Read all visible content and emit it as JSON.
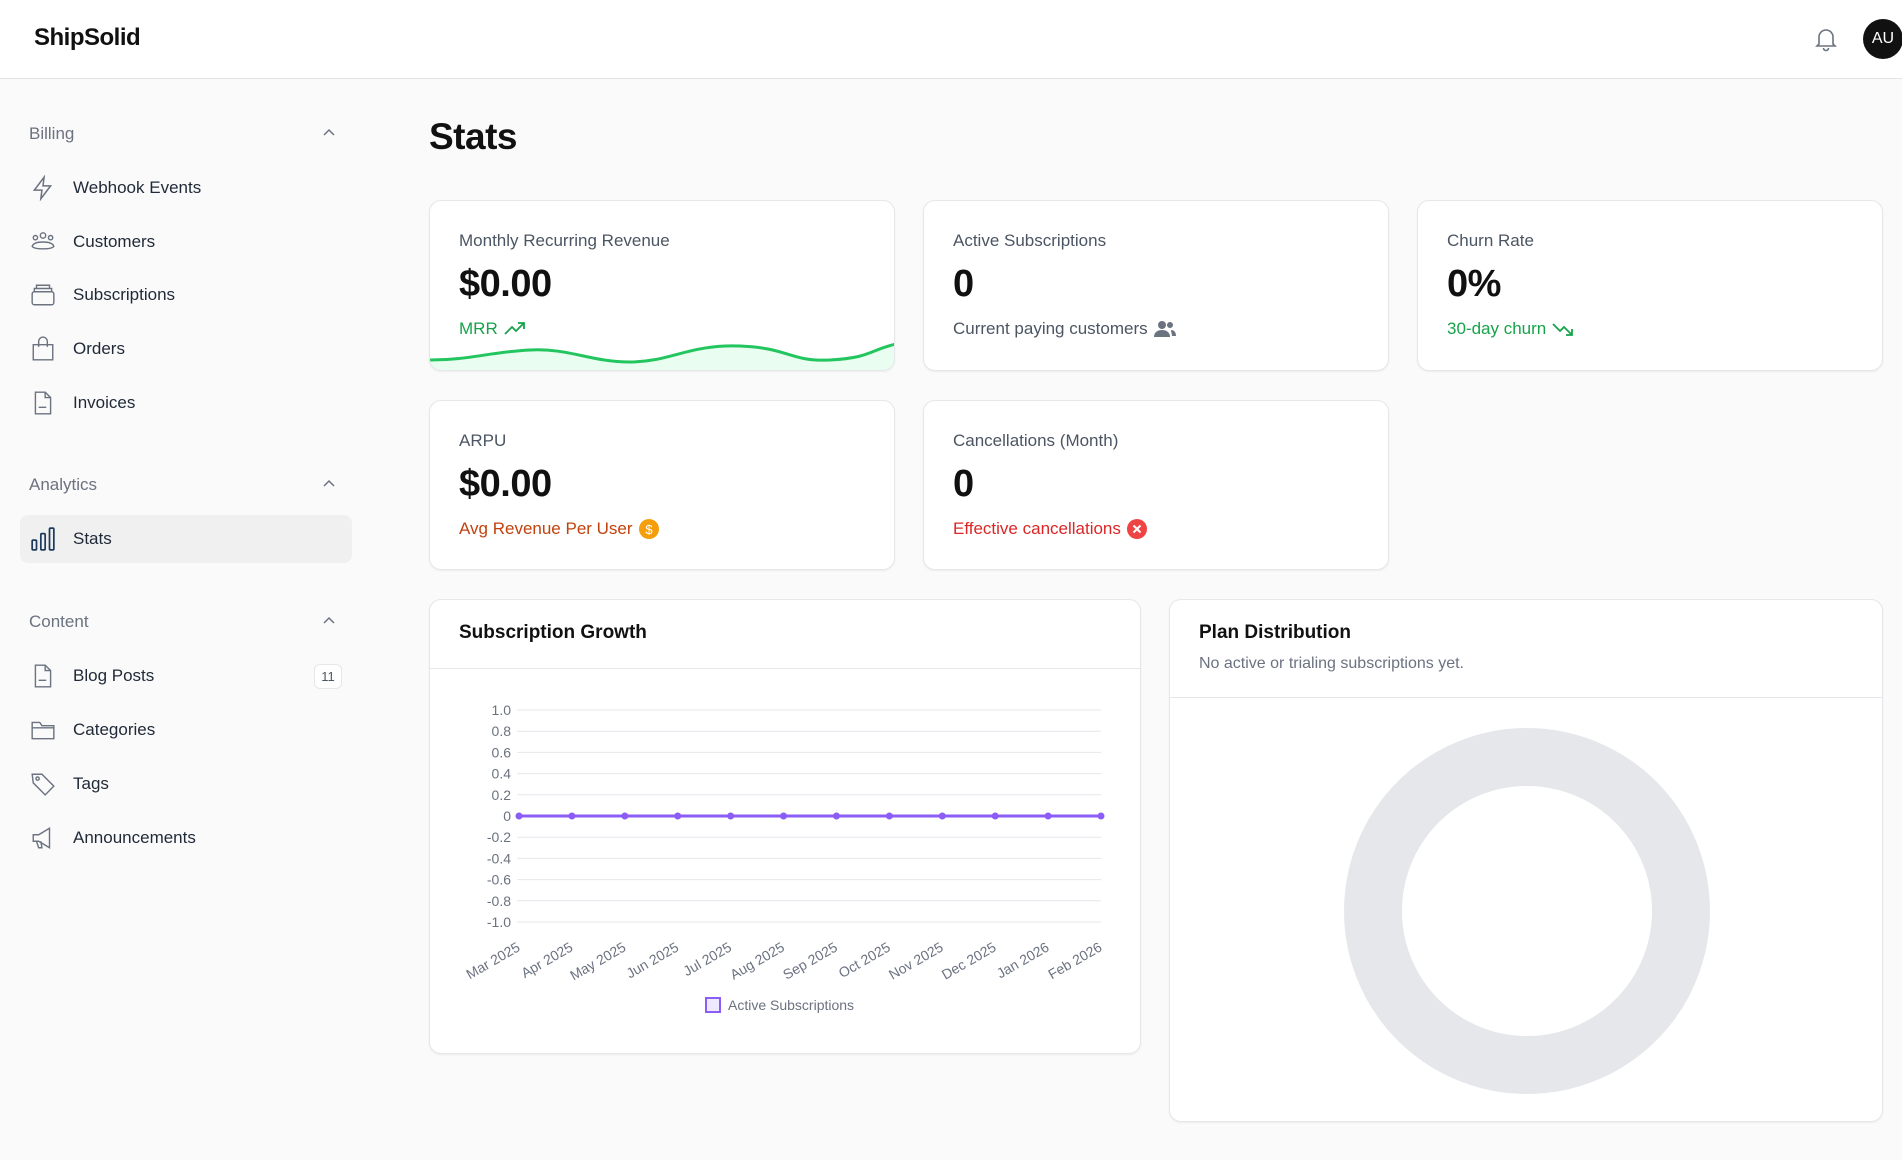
{
  "app": {
    "name": "ShipSolid",
    "avatar": "AU"
  },
  "sidebar": {
    "sections": [
      {
        "label": "Billing",
        "items": [
          {
            "label": "Webhook Events",
            "icon": "bolt-icon"
          },
          {
            "label": "Customers",
            "icon": "users-icon"
          },
          {
            "label": "Subscriptions",
            "icon": "stack-icon"
          },
          {
            "label": "Orders",
            "icon": "bag-icon"
          },
          {
            "label": "Invoices",
            "icon": "document-icon"
          }
        ]
      },
      {
        "label": "Analytics",
        "items": [
          {
            "label": "Stats",
            "icon": "bar-chart-icon",
            "active": true
          }
        ]
      },
      {
        "label": "Content",
        "items": [
          {
            "label": "Blog Posts",
            "icon": "document-icon",
            "badge": "11"
          },
          {
            "label": "Categories",
            "icon": "folder-icon"
          },
          {
            "label": "Tags",
            "icon": "tag-icon"
          },
          {
            "label": "Announcements",
            "icon": "megaphone-icon"
          }
        ]
      }
    ]
  },
  "page": {
    "title": "Stats"
  },
  "kpis": {
    "mrr": {
      "label": "Monthly Recurring Revenue",
      "value": "$0.00",
      "sub": "MRR",
      "color": "#16a34a"
    },
    "active": {
      "label": "Active Subscriptions",
      "value": "0",
      "sub": "Current paying customers",
      "color": "#4b5563"
    },
    "churn": {
      "label": "Churn Rate",
      "value": "0%",
      "sub": "30-day churn",
      "color": "#16a34a"
    },
    "arpu": {
      "label": "ARPU",
      "value": "$0.00",
      "sub": "Avg Revenue Per User",
      "color": "#c2410c"
    },
    "cancel": {
      "label": "Cancellations (Month)",
      "value": "0",
      "sub": "Effective cancellations",
      "color": "#dc2626"
    }
  },
  "plan": {
    "title": "Plan Distribution",
    "subtitle": "No active or trialing subscriptions yet."
  },
  "chart_data": {
    "type": "line",
    "title": "Subscription Growth",
    "categories": [
      "Mar 2025",
      "Apr 2025",
      "May 2025",
      "Jun 2025",
      "Jul 2025",
      "Aug 2025",
      "Sep 2025",
      "Oct 2025",
      "Nov 2025",
      "Dec 2025",
      "Jan 2026",
      "Feb 2026"
    ],
    "series": [
      {
        "name": "Active Subscriptions",
        "values": [
          0,
          0,
          0,
          0,
          0,
          0,
          0,
          0,
          0,
          0,
          0,
          0
        ],
        "color": "#8b5cf6"
      }
    ],
    "ylim": [
      -1,
      1
    ],
    "yticks": [
      "1.0",
      "0.8",
      "0.6",
      "0.4",
      "0.2",
      "0",
      "-0.2",
      "-0.4",
      "-0.6",
      "-0.8",
      "-1.0"
    ],
    "grid": true,
    "legend": "bottom"
  }
}
